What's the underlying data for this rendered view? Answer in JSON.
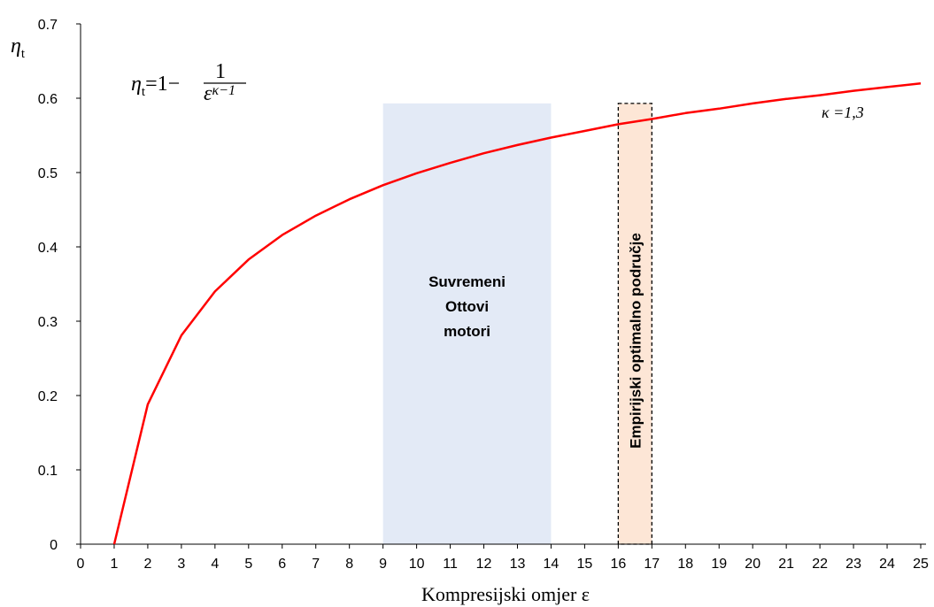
{
  "chart_data": {
    "type": "line",
    "ylabel": "η",
    "ylabel_sub": "t",
    "xlabel": "Kompresijski omjer ε",
    "xlim": [
      0,
      25
    ],
    "ylim": [
      0,
      0.7
    ],
    "x_ticks": [
      "0",
      "1",
      "2",
      "3",
      "4",
      "5",
      "6",
      "7",
      "8",
      "9",
      "10",
      "11",
      "12",
      "13",
      "14",
      "15",
      "16",
      "17",
      "18",
      "19",
      "20",
      "21",
      "22",
      "23",
      "24",
      "25"
    ],
    "y_ticks": [
      "0",
      "0.1",
      "0.2",
      "0.3",
      "0.4",
      "0.5",
      "0.6",
      "0.7"
    ],
    "grid": false,
    "series": [
      {
        "color": "#ff0000",
        "x": [
          1,
          2,
          3,
          4,
          5,
          6,
          7,
          8,
          9,
          10,
          11,
          12,
          13,
          14,
          15,
          16,
          17,
          18,
          19,
          20,
          21,
          22,
          23,
          24,
          25
        ],
        "y": [
          0,
          0.188,
          0.281,
          0.34,
          0.383,
          0.416,
          0.442,
          0.464,
          0.483,
          0.499,
          0.513,
          0.526,
          0.537,
          0.547,
          0.556,
          0.565,
          0.572,
          0.58,
          0.586,
          0.593,
          0.599,
          0.604,
          0.61,
          0.615,
          0.62
        ]
      }
    ],
    "annotations": {
      "formula": {
        "lhs": "η",
        "lhs_sub": "t",
        "eq": "=1−",
        "num": "1",
        "den_base": "ε",
        "den_exp": "κ−1"
      },
      "kappa_label": "κ =1,3",
      "band_modern": {
        "x_from": 9,
        "x_to": 14,
        "y_top": 0.593,
        "color": "#e3eaf6",
        "label_lines": [
          "Suvremeni",
          "Ottovi",
          "motori"
        ]
      },
      "band_optimal": {
        "x_from": 16,
        "x_to": 17,
        "y_top": 0.593,
        "color": "#fde6d6",
        "label": "Empirijski optimalno područje"
      }
    }
  }
}
